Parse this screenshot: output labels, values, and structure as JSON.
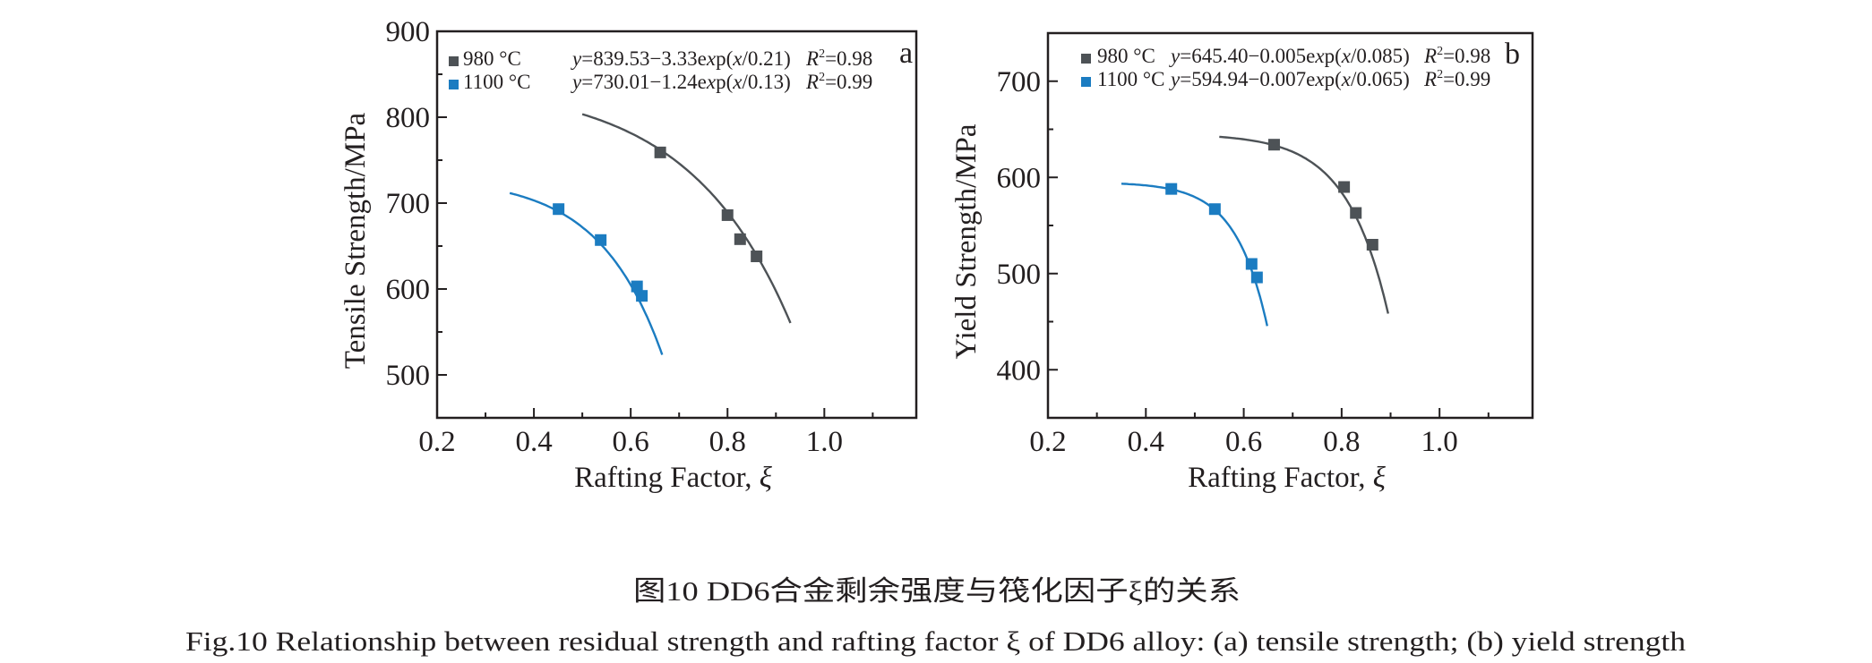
{
  "chart_data": [
    {
      "type": "scatter",
      "panel": "a",
      "title": "",
      "xlabel": "Rafting Factor, ξ",
      "ylabel": "Tensile Strength/MPa",
      "xlim": [
        0.2,
        1.19
      ],
      "ylim": [
        450,
        900
      ],
      "x_ticks": [
        0.2,
        0.4,
        0.6,
        0.8,
        1.0
      ],
      "x_tick_labels": [
        "0.2",
        "0.4",
        "0.6",
        "0.8",
        "1.0"
      ],
      "x_minor_ticks": [
        0.3,
        0.5,
        0.7,
        0.9,
        1.1
      ],
      "y_ticks": [
        500,
        600,
        700,
        800,
        900
      ],
      "y_tick_labels": [
        "500",
        "600",
        "700",
        "800",
        "900"
      ],
      "y_minor_ticks": [
        550,
        650,
        750,
        850
      ],
      "grid": false,
      "legend_position": "top-left",
      "series": [
        {
          "name": "980 °C",
          "color": "#4d5256",
          "x": [
            0.661,
            0.8,
            0.826,
            0.86
          ],
          "y": [
            759,
            686,
            658,
            638
          ],
          "fit": {
            "equation": "y=839.53−3.33exp(x/0.21)",
            "r2_label": "R²=0.98",
            "a": 839.53,
            "b": 3.33,
            "t": 0.21,
            "x_range": [
              0.5,
              0.93
            ]
          }
        },
        {
          "name": "1100 °C",
          "color": "#1b7cc1",
          "x": [
            0.451,
            0.538,
            0.613,
            0.623
          ],
          "y": [
            693,
            657,
            603,
            592
          ],
          "fit": {
            "equation": "y=730.01−1.24exp(x/0.13)",
            "r2_label": "R²=0.99",
            "a": 730.01,
            "b": 1.24,
            "t": 0.13,
            "x_range": [
              0.35,
              0.665
            ]
          }
        }
      ]
    },
    {
      "type": "scatter",
      "panel": "b",
      "title": "",
      "xlabel": "Rafting Factor, ξ",
      "ylabel": "Yield Strength/MPa",
      "xlim": [
        0.2,
        1.19
      ],
      "ylim": [
        350,
        750
      ],
      "x_ticks": [
        0.2,
        0.4,
        0.6,
        0.8,
        1.0
      ],
      "x_tick_labels": [
        "0.2",
        "0.4",
        "0.6",
        "0.8",
        "1.0"
      ],
      "x_minor_ticks": [
        0.3,
        0.5,
        0.7,
        0.9,
        1.1
      ],
      "y_ticks": [
        400,
        500,
        600,
        700
      ],
      "y_tick_labels": [
        "400",
        "500",
        "600",
        "700"
      ],
      "y_minor_ticks": [
        450,
        550,
        650
      ],
      "grid": false,
      "legend_position": "top-left",
      "series": [
        {
          "name": "980 °C",
          "color": "#4d5256",
          "x": [
            0.662,
            0.805,
            0.829,
            0.863
          ],
          "y": [
            634,
            590,
            563,
            530
          ],
          "fit": {
            "equation": "y=645.40−0.005exp(x/0.085)",
            "r2_label": "R²=0.98",
            "a": 645.4,
            "b": 0.005,
            "t": 0.085,
            "x_range": [
              0.55,
              0.895
            ]
          }
        },
        {
          "name": "1100 °C",
          "color": "#1b7cc1",
          "x": [
            0.452,
            0.541,
            0.616,
            0.627
          ],
          "y": [
            588,
            567,
            510,
            496
          ],
          "fit": {
            "equation": "y=594.94−0.007exp(x/0.065)",
            "r2_label": "R²=0.99",
            "a": 594.94,
            "b": 0.007,
            "t": 0.065,
            "x_range": [
              0.35,
              0.648
            ]
          }
        }
      ]
    }
  ],
  "captions": {
    "chinese": "图10  DD6合金剩余强度与筏化因子ξ的关系",
    "english": "Fig.10  Relationship between residual strength and rafting factor ξ of DD6 alloy: (a) tensile strength; (b) yield strength"
  }
}
